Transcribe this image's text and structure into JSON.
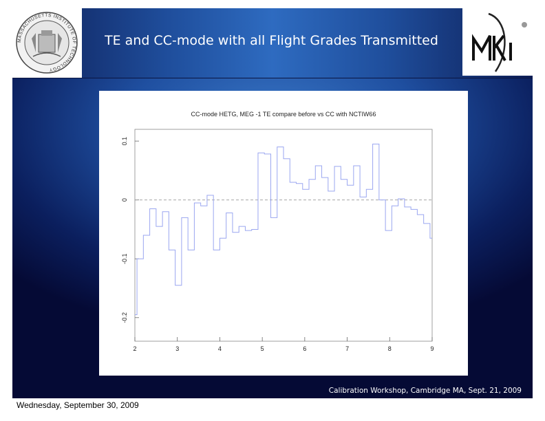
{
  "slide": {
    "title": "TE and CC-mode with all Flight Grades Transmitted",
    "footer": "Calibration Workshop, Cambridge MA, Sept. 21, 2009",
    "logo_text": "MKI",
    "seal_text": "MASSACHUSETTS INSTITUTE OF TECHNOLOGY",
    "background_colors": {
      "navy": "#050a35",
      "blue": "#2e6bc0"
    }
  },
  "date_stamp": "Wednesday, September 30, 2009",
  "chart_data": {
    "type": "line",
    "title": "CC-mode HETG, MEG -1 TE compare before vs CC with NCTIW66",
    "xlabel": "",
    "ylabel": "",
    "xlim": [
      2,
      9
    ],
    "ylim": [
      -0.24,
      0.12
    ],
    "x_ticks": [
      "2",
      "3",
      "4",
      "5",
      "6",
      "7",
      "8",
      "9"
    ],
    "y_ticks": [
      "-0.2",
      "-0.1",
      "0",
      "0.1"
    ],
    "y_tick_values": [
      -0.2,
      -0.1,
      0,
      0.1
    ],
    "reference_line": 0,
    "grid": false,
    "line_color": "#9aa6f0",
    "series": [
      {
        "style": "step",
        "x": [
          2.0,
          2.05,
          2.2,
          2.35,
          2.5,
          2.65,
          2.8,
          2.95,
          3.1,
          3.25,
          3.4,
          3.55,
          3.7,
          3.85,
          4.0,
          4.15,
          4.3,
          4.45,
          4.6,
          4.75,
          4.9,
          5.05,
          5.2,
          5.35,
          5.5,
          5.65,
          5.8,
          5.95,
          6.1,
          6.25,
          6.4,
          6.55,
          6.7,
          6.85,
          7.0,
          7.15,
          7.3,
          7.45,
          7.6,
          7.75,
          7.9,
          8.05,
          8.2,
          8.35,
          8.5,
          8.65,
          8.8,
          8.95,
          9.0
        ],
        "y": [
          -0.195,
          -0.1,
          -0.06,
          -0.015,
          -0.045,
          -0.02,
          -0.085,
          -0.145,
          -0.03,
          -0.085,
          -0.005,
          -0.01,
          0.008,
          -0.085,
          -0.065,
          -0.022,
          -0.055,
          -0.045,
          -0.052,
          -0.05,
          0.08,
          0.078,
          -0.03,
          0.09,
          0.07,
          0.03,
          0.028,
          0.018,
          0.035,
          0.058,
          0.038,
          0.015,
          0.057,
          0.035,
          0.025,
          0.058,
          0.005,
          0.018,
          0.095,
          0.0,
          -0.052,
          -0.01,
          0.002,
          -0.012,
          -0.016,
          -0.025,
          -0.04,
          -0.065,
          -0.065
        ]
      }
    ]
  }
}
